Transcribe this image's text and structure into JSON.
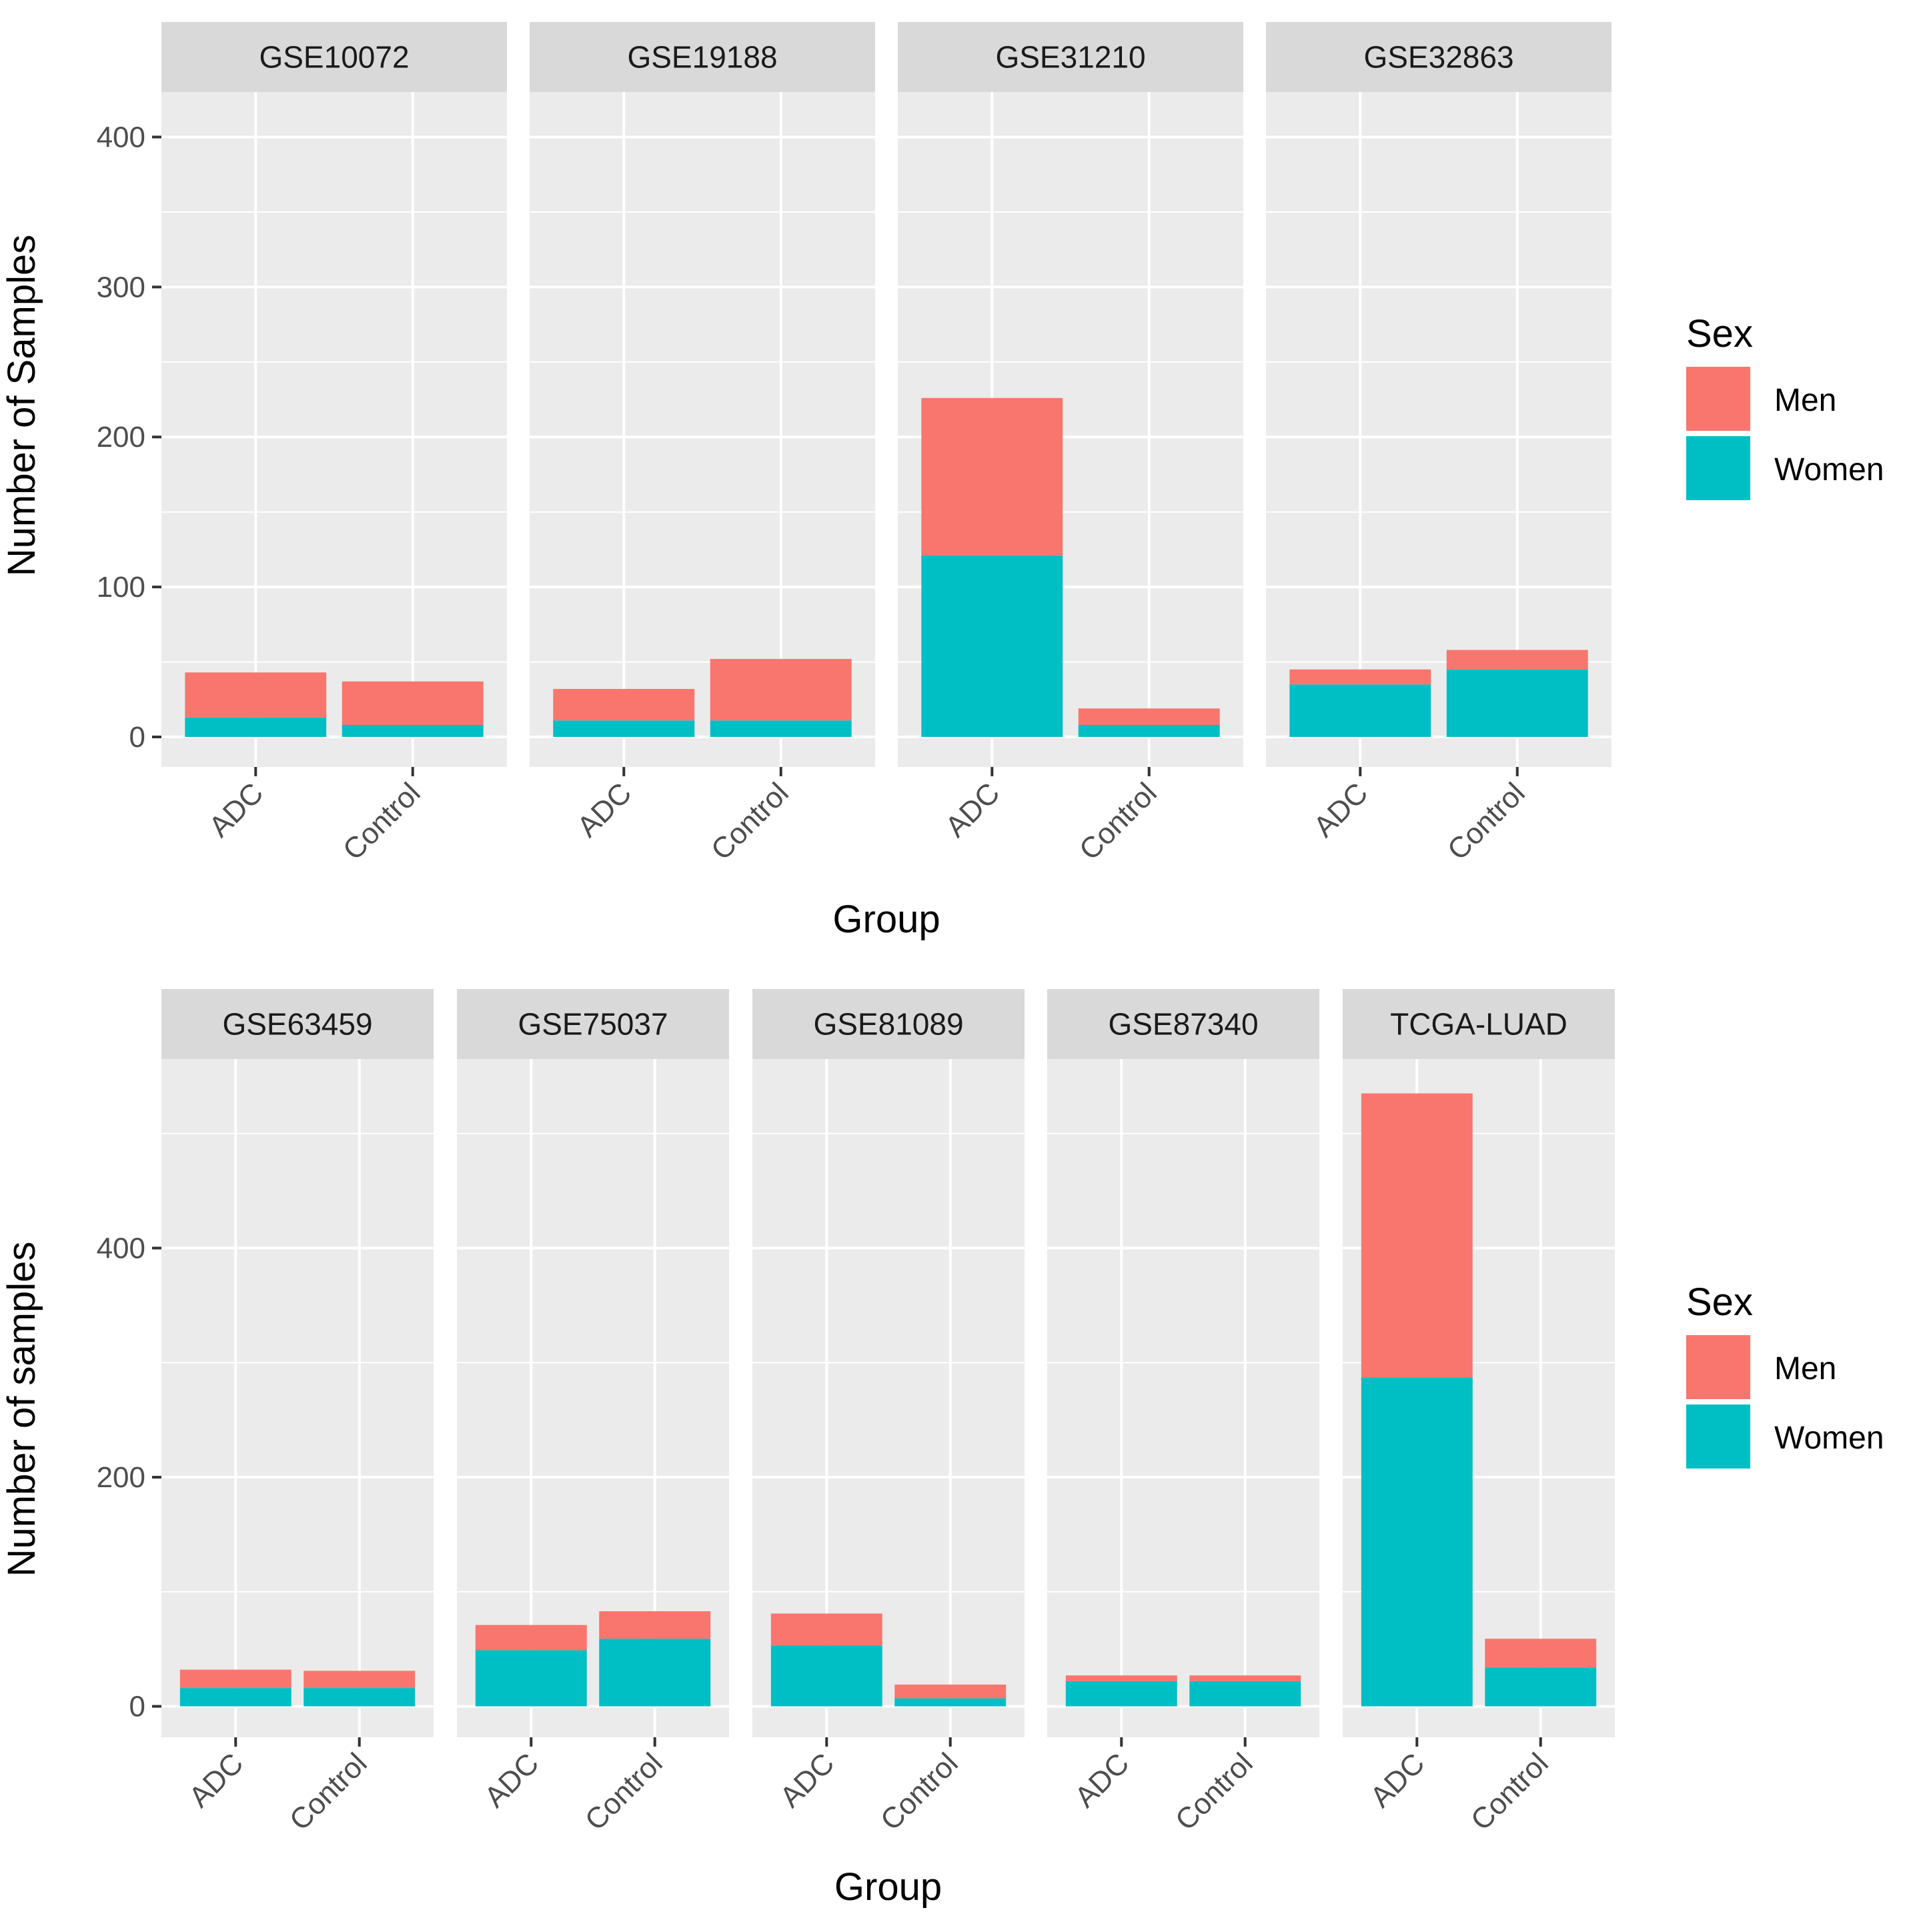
{
  "colors": {
    "men": "#F8766D",
    "women": "#00BFC4",
    "panel_bg": "#EBEBEB",
    "strip_bg": "#D9D9D9",
    "grid": "#FFFFFF"
  },
  "chart_data": [
    {
      "type": "bar",
      "stacked": true,
      "xlabel": "Group",
      "ylabel": "Number of Samples",
      "ylim": [
        -20,
        430
      ],
      "yticks": [
        0,
        100,
        200,
        300,
        400
      ],
      "categories": [
        "ADC",
        "Control"
      ],
      "legend": {
        "title": "Sex",
        "entries": [
          "Men",
          "Women"
        ],
        "position": "right"
      },
      "facets": [
        {
          "label": "GSE10072",
          "women": [
            13,
            8
          ],
          "men": [
            30,
            29
          ]
        },
        {
          "label": "GSE19188",
          "women": [
            11,
            11
          ],
          "men": [
            21,
            41
          ]
        },
        {
          "label": "GSE31210",
          "women": [
            121,
            8
          ],
          "men": [
            105,
            11
          ]
        },
        {
          "label": "GSE32863",
          "women": [
            35,
            45
          ],
          "men": [
            10,
            13
          ]
        }
      ]
    },
    {
      "type": "bar",
      "stacked": true,
      "xlabel": "Group",
      "ylabel": "Number of samples",
      "ylim": [
        -27,
        565
      ],
      "yticks": [
        0,
        200,
        400
      ],
      "categories": [
        "ADC",
        "Control"
      ],
      "legend": {
        "title": "Sex",
        "entries": [
          "Men",
          "Women"
        ],
        "position": "right"
      },
      "facets": [
        {
          "label": "GSE63459",
          "women": [
            16,
            16
          ],
          "men": [
            16,
            15
          ]
        },
        {
          "label": "GSE75037",
          "women": [
            49,
            59
          ],
          "men": [
            22,
            24
          ]
        },
        {
          "label": "GSE81089",
          "women": [
            53,
            7
          ],
          "men": [
            28,
            12
          ]
        },
        {
          "label": "GSE87340",
          "women": [
            22,
            22
          ],
          "men": [
            5,
            5
          ]
        },
        {
          "label": "TCGA-LUAD",
          "women": [
            287,
            34
          ],
          "men": [
            248,
            25
          ]
        }
      ]
    }
  ]
}
